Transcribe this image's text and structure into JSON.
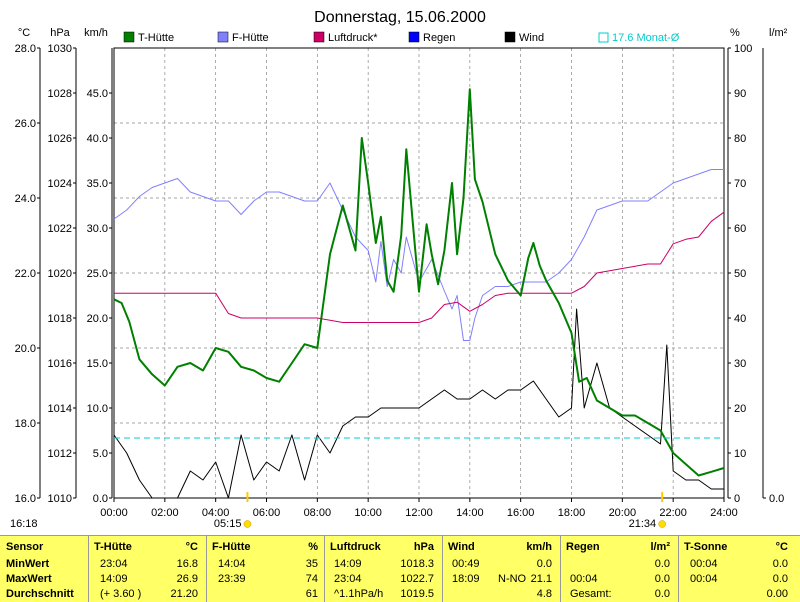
{
  "chart_data": {
    "type": "line",
    "title": "Donnerstag, 15.06.2000",
    "x_tick_labels": [
      "00:00",
      "02:00",
      "04:00",
      "06:00",
      "08:00",
      "10:00",
      "12:00",
      "14:00",
      "16:00",
      "18:00",
      "20:00",
      "22:00",
      "24:00"
    ],
    "x_range_hours": [
      0,
      24
    ],
    "left_axes": [
      {
        "unit": "°C",
        "ylim": [
          16,
          28
        ],
        "ticks": [
          "16.0",
          "18.0",
          "20.0",
          "22.0",
          "24.0",
          "26.0",
          "28.0"
        ]
      },
      {
        "unit": "hPa",
        "ylim": [
          1010,
          1030
        ],
        "ticks": [
          "1010",
          "1012",
          "1014",
          "1016",
          "1018",
          "1020",
          "1022",
          "1024",
          "1026",
          "1028",
          "1030"
        ]
      },
      {
        "unit": "km/h",
        "ylim": [
          0,
          50
        ],
        "ticks": [
          "0.0",
          "5.0",
          "10.0",
          "15.0",
          "20.0",
          "25.0",
          "30.0",
          "35.0",
          "40.0",
          "45.0"
        ]
      }
    ],
    "right_axes": [
      {
        "unit": "%",
        "ylim": [
          0,
          100
        ],
        "ticks": [
          "0",
          "10",
          "20",
          "30",
          "40",
          "50",
          "60",
          "70",
          "80",
          "90",
          "100"
        ]
      },
      {
        "unit": "l/m²",
        "ylim": [
          0,
          10
        ],
        "ticks": [
          "0.0"
        ]
      }
    ],
    "grid": true,
    "legend": [
      "T-Hütte",
      "F-Hütte",
      "Luftdruck*",
      "Regen",
      "Wind"
    ],
    "legend_colors": [
      "#008000",
      "#8080ff",
      "#cc0066",
      "#0000ff",
      "#000000"
    ],
    "reference_line": {
      "label": "17.6 Monat-Ø",
      "y_celsius": 17.6,
      "color": "#00cccc"
    },
    "sunrise": "05:15",
    "sunset": "21:34",
    "time_label": "16:18",
    "series": [
      {
        "name": "T-Hütte",
        "unit": "°C",
        "color": "#008000",
        "x": [
          0,
          0.3,
          0.6,
          1.0,
          1.5,
          2.0,
          2.5,
          3.0,
          3.5,
          4.0,
          4.5,
          5.0,
          5.5,
          6.0,
          6.5,
          7.0,
          7.5,
          8.0,
          8.5,
          9.0,
          9.5,
          9.75,
          10.0,
          10.3,
          10.5,
          10.75,
          11.0,
          11.3,
          11.5,
          11.75,
          12.0,
          12.3,
          12.5,
          12.75,
          13.0,
          13.3,
          13.5,
          13.75,
          14.0,
          14.2,
          14.5,
          15.0,
          15.5,
          16.0,
          16.3,
          16.5,
          16.75,
          17.0,
          17.5,
          18.0,
          18.3,
          18.6,
          19.0,
          19.5,
          20.0,
          20.5,
          21.0,
          21.5,
          22.0,
          22.5,
          23.0,
          23.5,
          24.0
        ],
        "y": [
          21.3,
          21.2,
          20.7,
          19.7,
          19.3,
          19.0,
          19.5,
          19.6,
          19.4,
          20.0,
          19.9,
          19.5,
          19.4,
          19.2,
          19.1,
          19.6,
          20.1,
          20.0,
          22.5,
          23.8,
          22.6,
          25.6,
          24.4,
          22.8,
          23.5,
          21.8,
          21.5,
          23.0,
          25.3,
          23.4,
          21.5,
          23.3,
          22.5,
          21.7,
          22.6,
          24.4,
          22.5,
          24.0,
          26.9,
          24.5,
          23.9,
          22.5,
          21.8,
          21.4,
          22.4,
          22.8,
          22.2,
          21.8,
          21.2,
          20.4,
          19.1,
          19.2,
          18.6,
          18.4,
          18.2,
          18.2,
          18.0,
          17.8,
          17.2,
          16.9,
          16.6,
          16.7,
          16.8
        ]
      },
      {
        "name": "F-Hütte",
        "unit": "%",
        "color": "#8080ff",
        "x": [
          0,
          0.5,
          1.0,
          1.5,
          2.0,
          2.5,
          3.0,
          3.5,
          4.0,
          4.5,
          5.0,
          5.5,
          6.0,
          6.5,
          7.0,
          7.5,
          8.0,
          8.5,
          9.0,
          9.5,
          10.0,
          10.3,
          10.5,
          10.75,
          11.0,
          11.3,
          11.5,
          11.75,
          12.0,
          12.5,
          13.0,
          13.3,
          13.5,
          13.75,
          14.0,
          14.2,
          14.5,
          15.0,
          15.5,
          16.0,
          16.5,
          17.0,
          17.5,
          18.0,
          18.5,
          19.0,
          19.5,
          20.0,
          20.5,
          21.0,
          21.5,
          22.0,
          22.5,
          23.0,
          23.5,
          24.0
        ],
        "y": [
          62,
          64,
          67,
          69,
          70,
          71,
          68,
          67,
          66,
          66,
          63,
          66,
          68,
          68,
          67,
          66,
          66,
          70,
          64,
          58,
          55,
          48,
          57,
          47,
          53,
          50,
          58,
          53,
          48,
          53,
          46,
          42,
          45,
          35,
          35,
          40,
          45,
          47,
          47,
          48,
          48,
          48,
          50,
          53,
          58,
          64,
          65,
          66,
          66,
          66,
          68,
          70,
          71,
          72,
          73,
          73
        ]
      },
      {
        "name": "Luftdruck*",
        "unit": "hPa",
        "color": "#cc0066",
        "x": [
          0,
          1.5,
          3.0,
          4.0,
          4.5,
          5.0,
          6.0,
          7.0,
          8.0,
          9.0,
          10.0,
          11.0,
          12.0,
          12.5,
          13.0,
          13.5,
          14.0,
          14.5,
          15.0,
          15.5,
          16.0,
          17.0,
          18.0,
          18.5,
          19.0,
          20.0,
          21.0,
          21.5,
          22.0,
          22.5,
          23.0,
          23.5,
          24.0
        ],
        "y": [
          1019.1,
          1019.1,
          1019.1,
          1019.1,
          1018.2,
          1018.0,
          1018.0,
          1018.0,
          1018.0,
          1017.8,
          1017.8,
          1017.8,
          1017.8,
          1018.0,
          1018.6,
          1018.7,
          1018.3,
          1018.6,
          1019.0,
          1019.1,
          1019.1,
          1019.1,
          1019.1,
          1019.4,
          1020.0,
          1020.2,
          1020.4,
          1020.4,
          1021.3,
          1021.5,
          1021.6,
          1022.3,
          1022.7
        ]
      },
      {
        "name": "Wind",
        "unit": "km/h",
        "color": "#000000",
        "x": [
          0,
          0.5,
          1.0,
          1.5,
          2.0,
          2.5,
          3.0,
          3.5,
          4.0,
          4.5,
          5.0,
          5.5,
          6.0,
          6.5,
          7.0,
          7.5,
          8.0,
          8.5,
          9.0,
          9.5,
          10.0,
          10.5,
          11.0,
          11.5,
          12.0,
          12.5,
          13.0,
          13.5,
          14.0,
          14.5,
          15.0,
          15.5,
          16.0,
          16.5,
          17.0,
          17.5,
          18.0,
          18.2,
          18.5,
          19.0,
          19.5,
          20.0,
          20.5,
          21.0,
          21.5,
          21.75,
          22.0,
          22.5,
          23.0,
          23.5,
          24.0
        ],
        "y": [
          7,
          5,
          2,
          0,
          0,
          0,
          3,
          2,
          4,
          0,
          7,
          2,
          4,
          3,
          7,
          2,
          7,
          5,
          8,
          9,
          9,
          10,
          10,
          10,
          10,
          11,
          12,
          11,
          11,
          12,
          11,
          12,
          12,
          13,
          11,
          9,
          10,
          21,
          10,
          15,
          10,
          9,
          8,
          7,
          6,
          17,
          3,
          2,
          2,
          1,
          1
        ]
      }
    ]
  },
  "table": {
    "header": {
      "sensor": "Sensor",
      "t_huette": "T-Hütte",
      "t_unit": "°C",
      "f_huette": "F-Hütte",
      "f_unit": "%",
      "luft": "Luftdruck",
      "luft_unit": "hPa",
      "wind": "Wind",
      "wind_unit": "km/h",
      "regen": "Regen",
      "regen_unit": "l/m²",
      "tsonne": "T-Sonne",
      "tsonne_unit": "°C"
    },
    "rows": [
      {
        "label": "MinWert",
        "t_time": "23:04",
        "t_val": "16.8",
        "f_time": "14:04",
        "f_val": "35",
        "l_time": "14:09",
        "l_val": "1018.3",
        "w_time": "00:49",
        "w_dir": "",
        "w_val": "0.0",
        "r_time": "",
        "r_val": "0.0",
        "s_time": "00:04",
        "s_val": "0.0"
      },
      {
        "label": "MaxWert",
        "t_time": "14:09",
        "t_val": "26.9",
        "f_time": "23:39",
        "f_val": "74",
        "l_time": "23:04",
        "l_val": "1022.7",
        "w_time": "18:09",
        "w_dir": "N-NO",
        "w_val": "21.1",
        "r_time": "00:04",
        "r_val": "0.0",
        "s_time": "00:04",
        "s_val": "0.0"
      },
      {
        "label": "Durchschnitt",
        "t_time": "(+ 3.60 )",
        "t_val": "21.20",
        "f_time": "",
        "f_val": "61",
        "l_time": "^1.1hPa/h",
        "l_val": "1019.5",
        "w_time": "",
        "w_dir": "",
        "w_val": "4.8",
        "r_time": "Gesamt:",
        "r_val": "0.0",
        "s_time": "",
        "s_val": "0.00"
      }
    ]
  }
}
